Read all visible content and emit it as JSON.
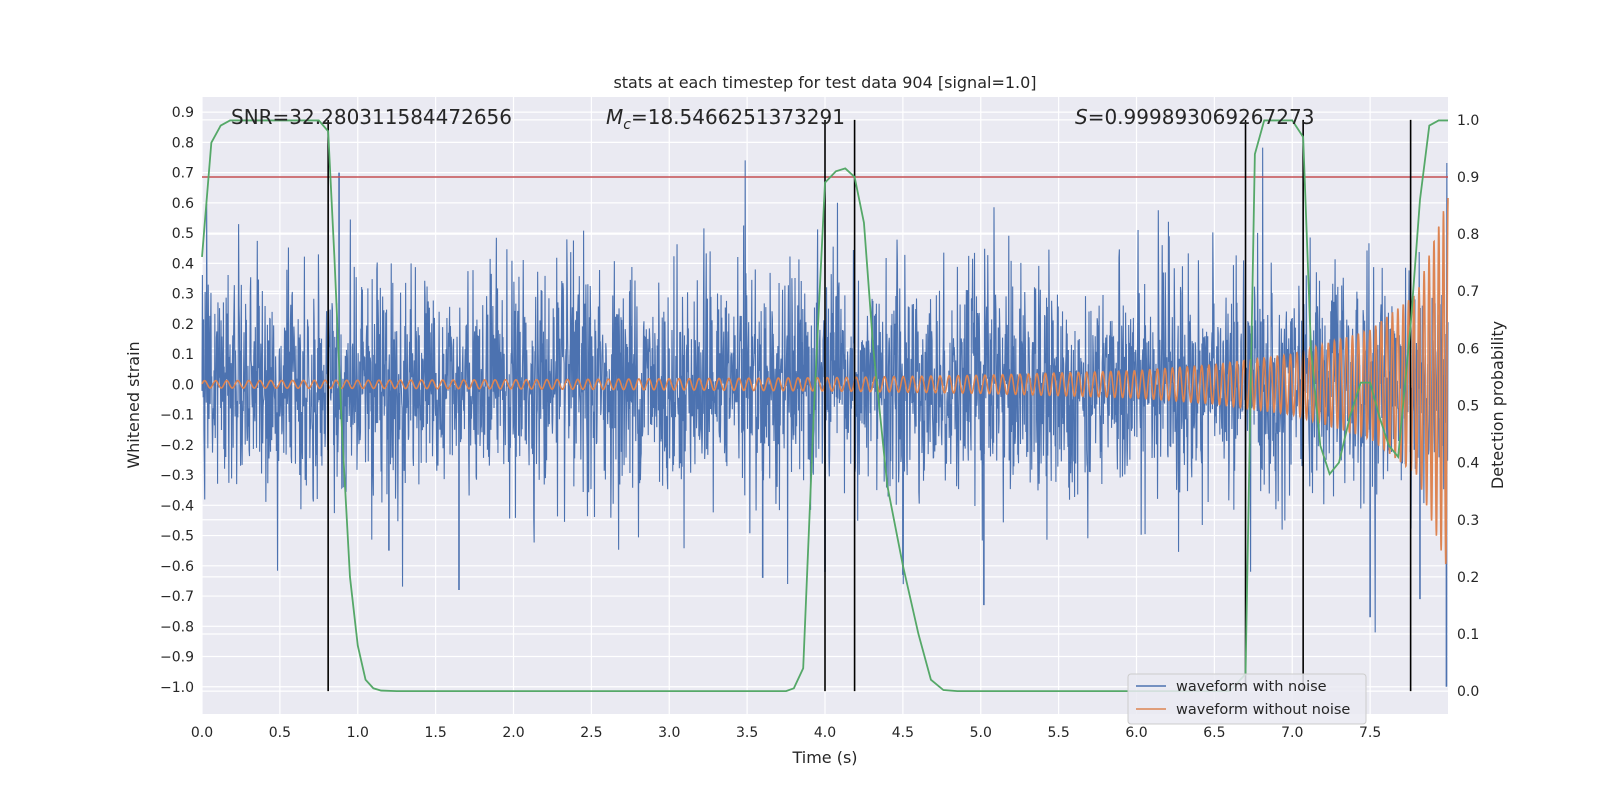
{
  "chart_data": {
    "type": "line",
    "title": "stats at each timestep for test data 904 [signal=1.0]",
    "xlabel": "Time (s)",
    "ylabel": "Whitened strain",
    "y2label": "Detection probability",
    "xlim": [
      0.0,
      8.0
    ],
    "ylim": [
      -1.09,
      0.95
    ],
    "y2lim": [
      -0.04,
      1.04
    ],
    "xticks": [
      "0.0",
      "0.5",
      "1.0",
      "1.5",
      "2.0",
      "2.5",
      "3.0",
      "3.5",
      "4.0",
      "4.5",
      "5.0",
      "5.5",
      "6.0",
      "6.5",
      "7.0",
      "7.5"
    ],
    "yticks": [
      "0.9",
      "0.8",
      "0.7",
      "0.6",
      "0.5",
      "0.4",
      "0.3",
      "0.2",
      "0.1",
      "0.0",
      "−0.1",
      "−0.2",
      "−0.3",
      "−0.4",
      "−0.5",
      "−0.6",
      "−0.7",
      "−0.8",
      "−0.9",
      "−1.0"
    ],
    "y2ticks": [
      "1.0",
      "0.9",
      "0.8",
      "0.7",
      "0.6",
      "0.5",
      "0.4",
      "0.3",
      "0.2",
      "0.1",
      "0.0"
    ],
    "grid": true,
    "legend": "lower-right",
    "annotations": {
      "snr": "SNR=32.280311584472656",
      "mc_symbol": "M",
      "mc_sub": "c",
      "mc_value": "=18.5466251373291",
      "s_symbol": "S",
      "s_value": "=0.999893069267273"
    },
    "threshold": {
      "y2": 0.9,
      "color": "#c44e52"
    },
    "vlines_x": [
      0.81,
      4.0,
      4.19,
      6.7,
      7.07,
      7.76
    ],
    "series": [
      {
        "name": "waveform with noise",
        "color": "#4c72b0",
        "axis": "y",
        "noise_sigma": 0.16,
        "note_points": [
          [
            0.88,
            0.7
          ],
          [
            1.2,
            -0.55
          ],
          [
            1.65,
            -0.68
          ],
          [
            3.6,
            -0.64
          ],
          [
            4.0,
            -0.62
          ],
          [
            4.5,
            -0.63
          ],
          [
            5.02,
            -0.73
          ],
          [
            7.5,
            -0.77
          ],
          [
            7.82,
            -0.71
          ],
          [
            7.99,
            -1.0
          ]
        ]
      },
      {
        "name": "waveform without noise",
        "color": "#dd8452",
        "axis": "y",
        "chirp": {
          "t": [
            0.0,
            2.0,
            4.0,
            5.0,
            6.0,
            6.5,
            7.0,
            7.5,
            7.8,
            8.0
          ],
          "amplitude": [
            0.012,
            0.015,
            0.022,
            0.03,
            0.045,
            0.065,
            0.1,
            0.18,
            0.3,
            0.62
          ],
          "freq_hz": [
            14.0,
            15.0,
            16.0,
            17.5,
            20.0,
            22.0,
            24.0,
            27.0,
            30.0,
            34.0
          ]
        }
      },
      {
        "name": "Detection probability",
        "color": "#55a868",
        "axis": "y2",
        "x": [
          0.0,
          0.06,
          0.12,
          0.18,
          0.25,
          0.35,
          0.45,
          0.55,
          0.65,
          0.75,
          0.81,
          0.85,
          0.9,
          0.95,
          1.0,
          1.05,
          1.1,
          1.15,
          1.25,
          1.5,
          2.0,
          3.0,
          3.5,
          3.75,
          3.8,
          3.86,
          3.93,
          4.0,
          4.07,
          4.13,
          4.19,
          4.25,
          4.31,
          4.4,
          4.5,
          4.6,
          4.68,
          4.76,
          4.85,
          5.0,
          6.0,
          6.6,
          6.7,
          6.76,
          6.82,
          6.9,
          7.0,
          7.07,
          7.12,
          7.18,
          7.24,
          7.3,
          7.37,
          7.44,
          7.5,
          7.56,
          7.62,
          7.68,
          7.76,
          7.82,
          7.88,
          7.94,
          8.0
        ],
        "values": [
          0.76,
          0.96,
          0.99,
          0.999,
          0.999,
          0.999,
          0.999,
          0.999,
          0.999,
          0.999,
          0.98,
          0.76,
          0.45,
          0.2,
          0.08,
          0.02,
          0.005,
          0.001,
          0.0,
          0.0,
          0.0,
          0.0,
          0.0,
          0.0,
          0.005,
          0.04,
          0.5,
          0.89,
          0.91,
          0.915,
          0.9,
          0.82,
          0.6,
          0.36,
          0.22,
          0.1,
          0.02,
          0.002,
          0.0,
          0.0,
          0.0,
          0.0,
          0.03,
          0.94,
          0.999,
          0.999,
          0.999,
          0.97,
          0.6,
          0.43,
          0.38,
          0.4,
          0.48,
          0.54,
          0.54,
          0.48,
          0.43,
          0.41,
          0.64,
          0.86,
          0.99,
          0.999,
          0.999
        ]
      }
    ]
  }
}
